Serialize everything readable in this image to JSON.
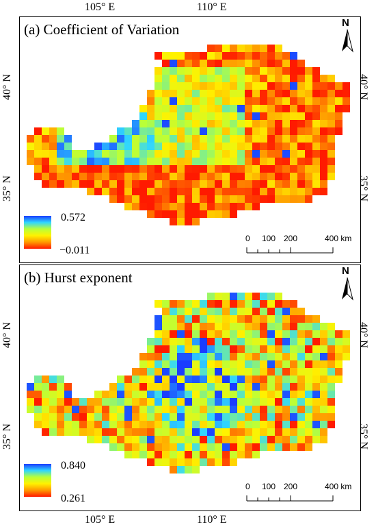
{
  "figure": {
    "lon_ticks": [
      "105° E",
      "110° E"
    ],
    "lat_ticks": [
      "40° N",
      "35° N"
    ]
  },
  "panels": [
    {
      "title": "(a) Coefficient of Variation",
      "north_label": "N",
      "legend": {
        "max_label": "0.572",
        "min_label": "−0.011",
        "colors": [
          "#1a3cff",
          "#2fd6ff",
          "#b8ff3a",
          "#fff200",
          "#ff9a00",
          "#ff1a00"
        ]
      },
      "scale": {
        "labels": [
          "0",
          "100",
          "200",
          "400 km"
        ]
      }
    },
    {
      "title": "(b) Hurst exponent",
      "north_label": "N",
      "legend": {
        "max_label": "0.840",
        "min_label": "0.261",
        "colors": [
          "#1a3cff",
          "#2fd6ff",
          "#b8ff3a",
          "#fff200",
          "#ff9a00",
          "#ff1a00"
        ]
      },
      "scale": {
        "labels": [
          "0",
          "100",
          "200",
          "400 km"
        ]
      }
    }
  ]
}
